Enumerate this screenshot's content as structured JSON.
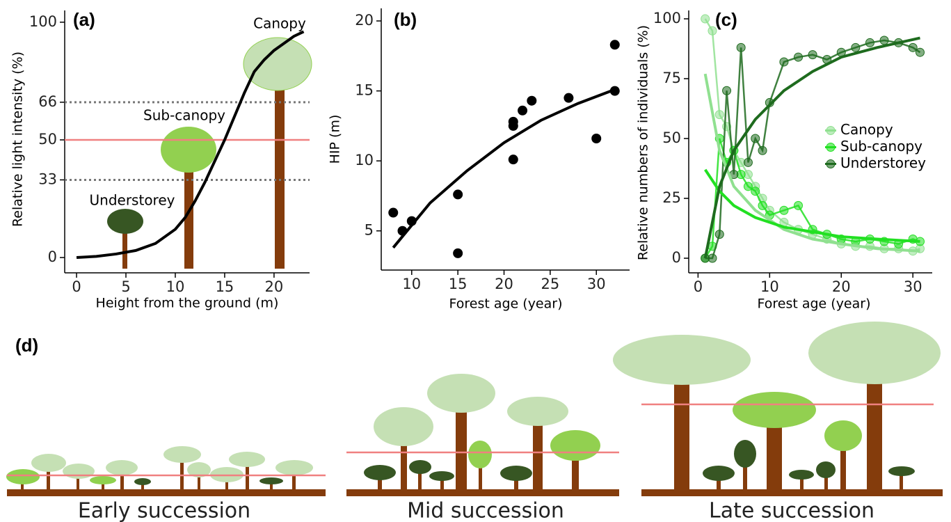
{
  "chart_data": [
    {
      "type": "line",
      "title": "(a)",
      "x_label": "Height from the ground (m)",
      "y_label": "Relative light intensity (%)",
      "annotations": [
        "Understorey",
        "Sub-canopy",
        "Canopy"
      ],
      "x": [
        0,
        2,
        4,
        6,
        8,
        10,
        11,
        12,
        13,
        14,
        15,
        16,
        17,
        18,
        19,
        20,
        21,
        22,
        23
      ],
      "series": [
        {
          "color": "#000000",
          "values": [
            0,
            0.5,
            1.5,
            3,
            6,
            12,
            17,
            24,
            32,
            41,
            50,
            60,
            70,
            79,
            84,
            88,
            91,
            94,
            96
          ]
        }
      ],
      "reference_lines": [
        {
          "y": 33,
          "color": "#777777",
          "dash": true
        },
        {
          "y": 50,
          "color": "#f08080",
          "dash": false
        },
        {
          "y": 66,
          "color": "#777777",
          "dash": true
        }
      ],
      "xlim": [
        -1.2,
        23.6
      ],
      "ylim": [
        -6.5,
        105
      ],
      "xticks": [
        0,
        5,
        10,
        15,
        20
      ],
      "yticks": [
        0,
        33,
        50,
        66,
        100
      ]
    },
    {
      "type": "scatter",
      "title": "(b)",
      "x_label": "Forest age (year)",
      "y_label": "HIP (m)",
      "x": [
        8,
        9,
        10,
        15,
        15,
        21,
        21,
        21,
        22,
        23,
        27,
        30,
        32,
        32
      ],
      "values": [
        6.3,
        5.0,
        5.7,
        7.6,
        3.4,
        12.8,
        12.5,
        10.1,
        13.6,
        14.3,
        14.5,
        11.6,
        18.3,
        15.0
      ],
      "color": "#000000",
      "fit_x": [
        8,
        12,
        16,
        20,
        24,
        28,
        32
      ],
      "fit": [
        3.8,
        7.0,
        9.3,
        11.3,
        12.9,
        14.1,
        15.1
      ],
      "xlim": [
        6.7,
        33.6
      ],
      "ylim": [
        2.2,
        20.9
      ],
      "xticks": [
        10,
        15,
        20,
        25,
        30
      ],
      "yticks": [
        5,
        10,
        15,
        20
      ]
    },
    {
      "type": "line",
      "title": "(c)",
      "x_label": "Forest age (year)",
      "y_label": "Relative numbers of individuals (%)",
      "markers": true,
      "legend": "right",
      "x": [
        1,
        2,
        3,
        4,
        5,
        6,
        7,
        8,
        9,
        10,
        12,
        14,
        16,
        18,
        20,
        22,
        24,
        26,
        28,
        30,
        31
      ],
      "fit_x": [
        1,
        3,
        5,
        8,
        12,
        16,
        20,
        25,
        31
      ],
      "series": [
        {
          "name": "Canopy",
          "color": "#90e090",
          "values": [
            100,
            95,
            60,
            55,
            45,
            40,
            35,
            30,
            25,
            20,
            15,
            12,
            10,
            8,
            6,
            5,
            5,
            4,
            4,
            3,
            4
          ],
          "fit": [
            77,
            45,
            30,
            20,
            12,
            8,
            6,
            4,
            3
          ]
        },
        {
          "name": "Sub-canopy",
          "color": "#22e022",
          "values": [
            0,
            5,
            50,
            40,
            45,
            35,
            30,
            28,
            22,
            18,
            20,
            22,
            12,
            10,
            8,
            7,
            8,
            7,
            6,
            8,
            7
          ],
          "fit": [
            37,
            28,
            22,
            17,
            13,
            11,
            9,
            8,
            7
          ]
        },
        {
          "name": "Understorey",
          "color": "#1e6b1e",
          "values": [
            0,
            0,
            10,
            70,
            35,
            88,
            40,
            50,
            45,
            65,
            82,
            84,
            85,
            83,
            86,
            88,
            90,
            91,
            90,
            88,
            86
          ],
          "fit": [
            0,
            30,
            45,
            58,
            70,
            78,
            84,
            88,
            92
          ]
        }
      ],
      "xlim": [
        -1.3,
        32.7
      ],
      "ylim": [
        -6.1,
        103.5
      ],
      "xticks": [
        0,
        10,
        20,
        30
      ],
      "yticks": [
        0,
        25,
        50,
        75,
        100
      ]
    }
  ],
  "panel_d": {
    "label": "(d)",
    "captions": [
      "Early succession",
      "Mid succession",
      "Late succession"
    ]
  }
}
